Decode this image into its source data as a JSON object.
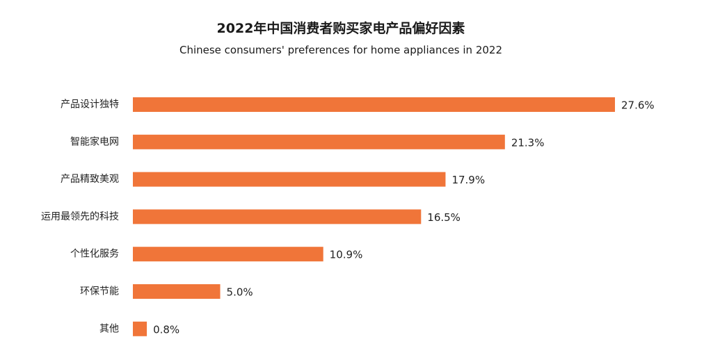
{
  "chart_data": {
    "type": "bar",
    "orientation": "horizontal",
    "title": "2022年中国消费者购买家电产品偏好因素",
    "subtitle": "Chinese consumers' preferences for home appliances in 2022",
    "categories": [
      "产品设计独特",
      "智能家电网",
      "产品精致美观",
      "运用最领先的科技",
      "个性化服务",
      "环保节能",
      "其他"
    ],
    "values": [
      27.6,
      21.3,
      17.9,
      16.5,
      10.9,
      5.0,
      0.8
    ],
    "value_labels": [
      "27.6%",
      "21.3%",
      "17.9%",
      "16.5%",
      "10.9%",
      "5.0%",
      "0.8%"
    ],
    "xlabel": "",
    "ylabel": "",
    "xlim": [
      0,
      27.6
    ],
    "grid": false,
    "legend": "none",
    "bar_color": "#f07539"
  }
}
